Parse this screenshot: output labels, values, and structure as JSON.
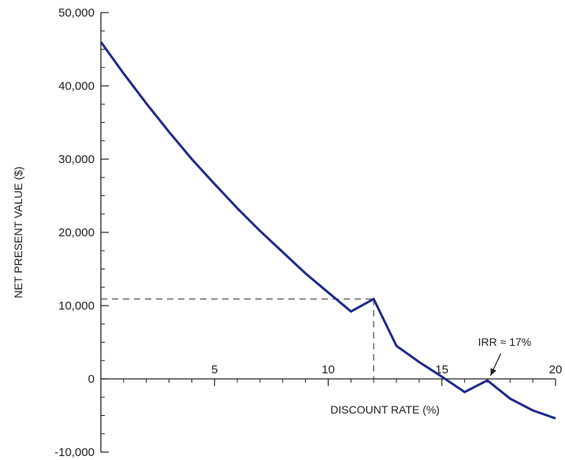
{
  "chart_data": {
    "type": "line",
    "title": "",
    "xlabel": "DISCOUNT RATE (%)",
    "ylabel": "NET PRESENT VALUE ($)",
    "xlim": [
      0,
      20
    ],
    "ylim": [
      -10000,
      50000
    ],
    "x_ticks": [
      5,
      10,
      15,
      20
    ],
    "x_tick_labels": [
      "5",
      "10",
      "15",
      "20"
    ],
    "y_ticks": [
      -10000,
      0,
      10000,
      20000,
      30000,
      40000,
      50000
    ],
    "y_tick_labels": [
      "-10,000",
      "0",
      "10,000",
      "20,000",
      "30,000",
      "40,000",
      "50,000"
    ],
    "grid": false,
    "series": [
      {
        "color": "#1f2a8c",
        "x": [
          0,
          1,
          2,
          3,
          4,
          5,
          6,
          7,
          8,
          9,
          10,
          11,
          12,
          13,
          14,
          15,
          16,
          17,
          18,
          19,
          20
        ],
        "y": [
          46000,
          41700,
          37600,
          33700,
          30000,
          26600,
          23300,
          20200,
          17300,
          14400,
          11800,
          9200,
          10900,
          4500,
          2300,
          300,
          -1800,
          -200,
          -2700,
          -4300,
          -5400
        ]
      }
    ],
    "reference": {
      "x": 12,
      "y": 10900
    },
    "annotation": {
      "text": "IRR ≈ 17%",
      "x": 17,
      "y": 0
    }
  }
}
